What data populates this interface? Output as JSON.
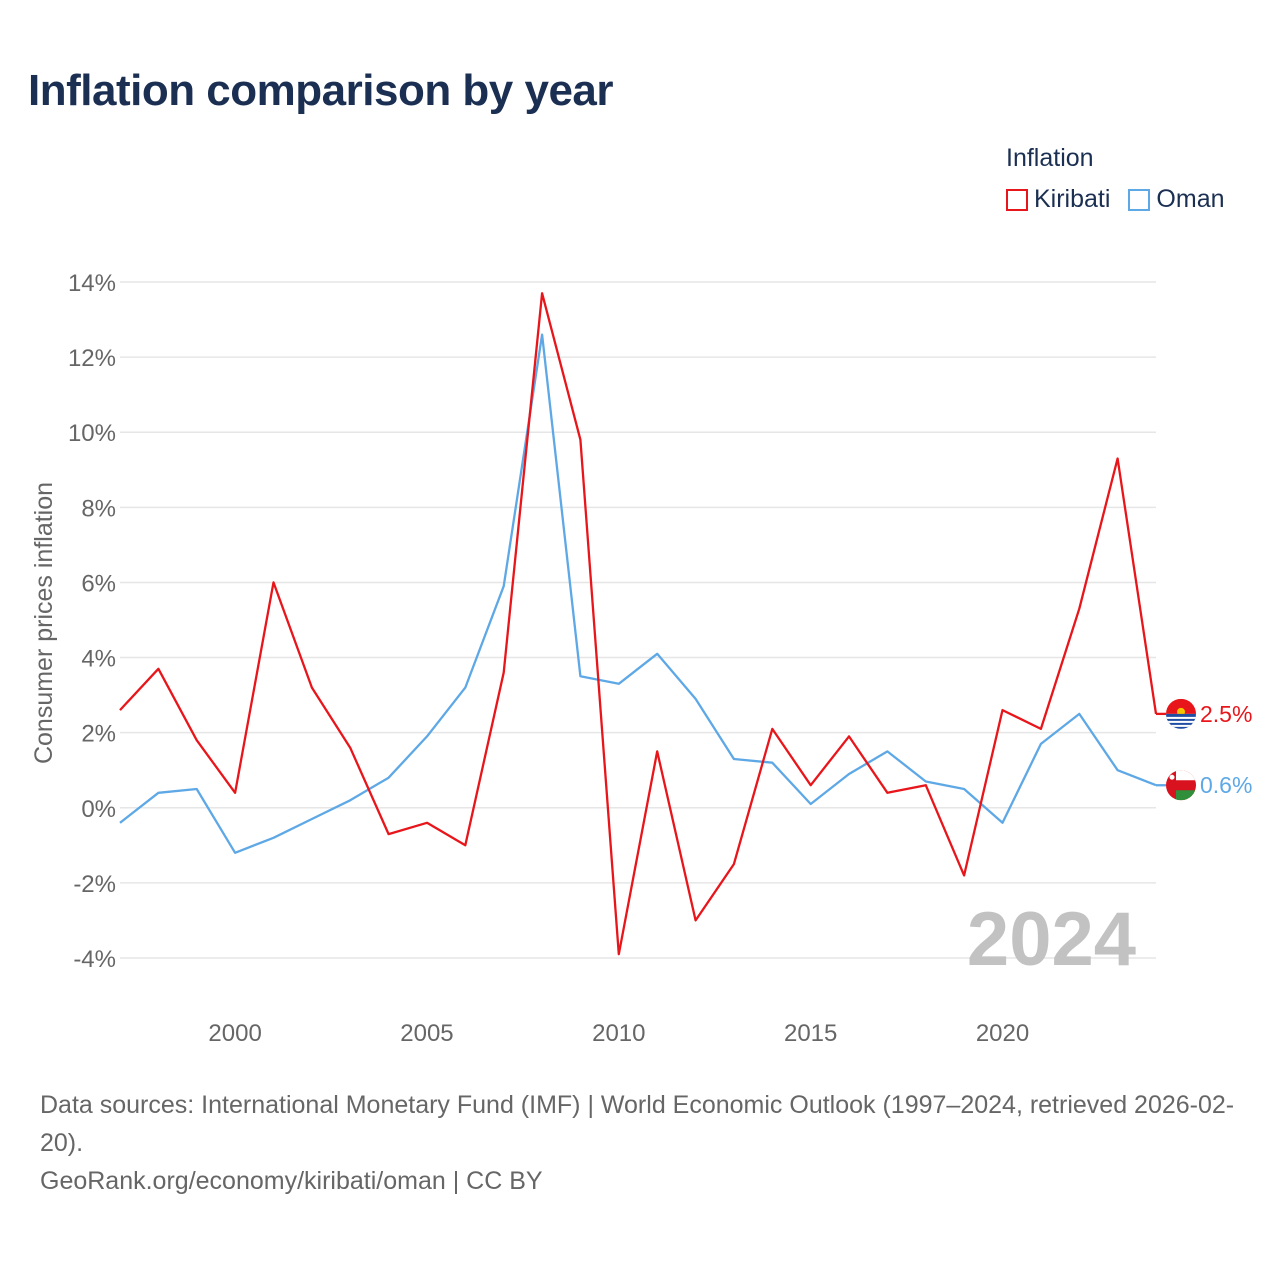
{
  "title": "Inflation comparison by year",
  "legend": {
    "title": "Inflation",
    "items": [
      {
        "label": "Kiribati",
        "color": "#e8161b"
      },
      {
        "label": "Oman",
        "color": "#5ea8e6"
      }
    ]
  },
  "watermark_year": "2024",
  "source": {
    "line1": "Data sources: International Monetary Fund (IMF) | World Economic Outlook (1997–2024, retrieved 2026-02-20).",
    "line2": "GeoRank.org/economy/kiribati/oman | CC BY"
  },
  "chart_data": {
    "type": "line",
    "title": "Inflation comparison by year",
    "xlabel": "",
    "ylabel": "Consumer prices inflation",
    "x": [
      1997,
      1998,
      1999,
      2000,
      2001,
      2002,
      2003,
      2004,
      2005,
      2006,
      2007,
      2008,
      2009,
      2010,
      2011,
      2012,
      2013,
      2014,
      2015,
      2016,
      2017,
      2018,
      2019,
      2020,
      2021,
      2022,
      2023,
      2024
    ],
    "xlim": [
      1997,
      2024
    ],
    "ylim": [
      -4,
      14
    ],
    "x_ticks": [
      2000,
      2005,
      2010,
      2015,
      2020
    ],
    "x_tick_labels": [
      "2000",
      "2005",
      "2010",
      "2015",
      "2020"
    ],
    "y_ticks": [
      -4,
      -2,
      0,
      2,
      4,
      6,
      8,
      10,
      12,
      14
    ],
    "y_tick_labels": [
      "-4%",
      "-2%",
      "0%",
      "2%",
      "4%",
      "6%",
      "8%",
      "10%",
      "12%",
      "14%"
    ],
    "grid": true,
    "legend_position": "top-right",
    "series": [
      {
        "name": "Kiribati",
        "color": "#e8161b",
        "end_label": "2.5%",
        "flag_icon": "kiribati-flag-icon",
        "values": [
          2.6,
          3.7,
          1.8,
          0.4,
          6.0,
          3.2,
          1.6,
          -0.7,
          -0.4,
          -1.0,
          3.6,
          13.7,
          9.8,
          -3.9,
          1.5,
          -3.0,
          -1.5,
          2.1,
          0.6,
          1.9,
          0.4,
          0.6,
          -1.8,
          2.6,
          2.1,
          5.3,
          9.3,
          2.5
        ]
      },
      {
        "name": "Oman",
        "color": "#5ea8e6",
        "end_label": "0.6%",
        "flag_icon": "oman-flag-icon",
        "values": [
          -0.4,
          0.4,
          0.5,
          -1.2,
          -0.8,
          -0.3,
          0.2,
          0.8,
          1.9,
          3.2,
          5.9,
          12.6,
          3.5,
          3.3,
          4.1,
          2.9,
          1.3,
          1.2,
          0.1,
          0.9,
          1.5,
          0.7,
          0.5,
          -0.4,
          1.7,
          2.5,
          1.0,
          0.6
        ]
      }
    ]
  }
}
